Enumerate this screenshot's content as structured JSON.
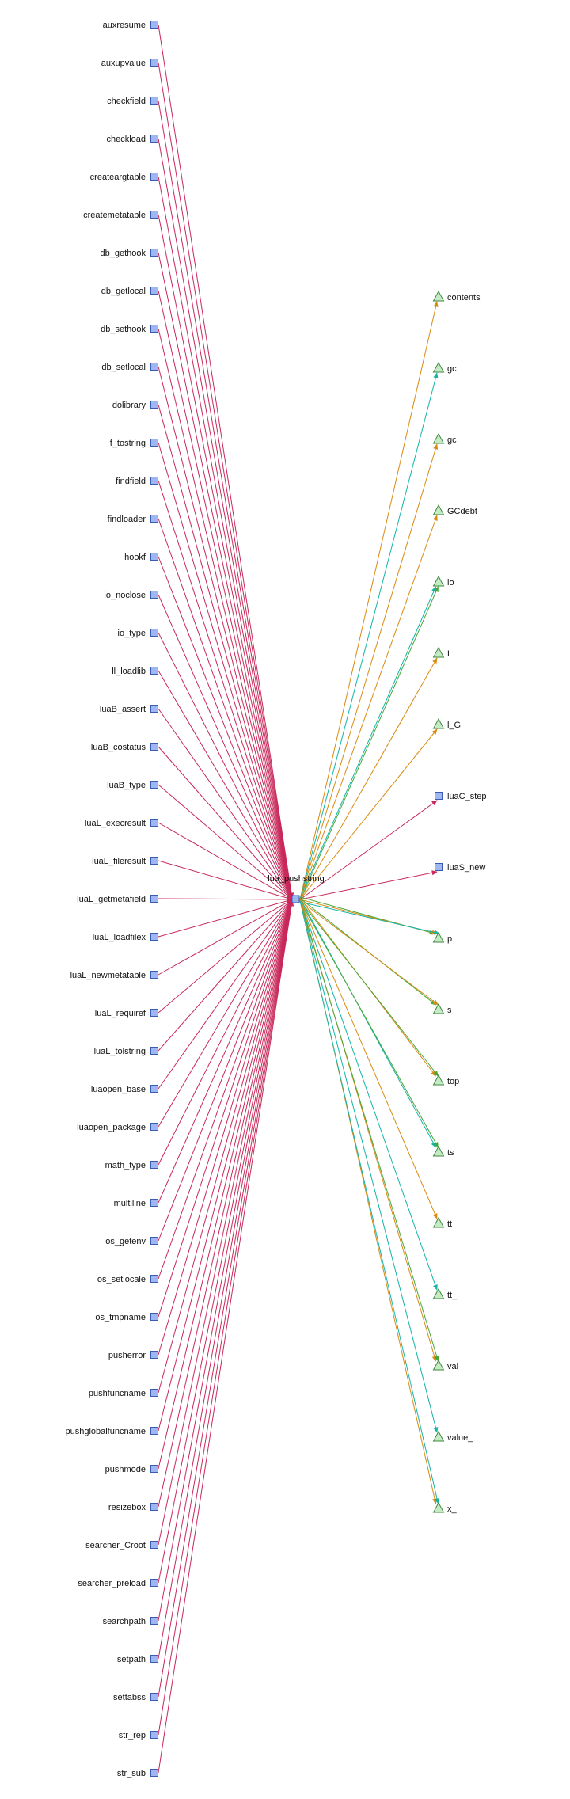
{
  "colors": {
    "caller_edge": "#c8285a",
    "func_edge": "#c8285a",
    "var_edge_orange": "#d98a10",
    "var_edge_teal": "#12b5a8",
    "var_edge_green": "#47a83a",
    "func_node_fill": "#9fb7f0",
    "func_node_stroke": "#3b5bb5",
    "var_node_fill": "#c6eac6",
    "var_node_stroke": "#3f8a3f"
  },
  "center": {
    "label": "lua_pushstring",
    "shape": "box"
  },
  "callers": [
    "auxresume",
    "auxupvalue",
    "checkfield",
    "checkload",
    "createargtable",
    "createmetatable",
    "db_gethook",
    "db_getlocal",
    "db_sethook",
    "db_setlocal",
    "dolibrary",
    "f_tostring",
    "findfield",
    "findloader",
    "hookf",
    "io_noclose",
    "io_type",
    "ll_loadlib",
    "luaB_assert",
    "luaB_costatus",
    "luaB_type",
    "luaL_execresult",
    "luaL_fileresult",
    "luaL_getmetafield",
    "luaL_loadfilex",
    "luaL_newmetatable",
    "luaL_requiref",
    "luaL_tolstring",
    "luaopen_base",
    "luaopen_package",
    "math_type",
    "multiline",
    "os_getenv",
    "os_setlocale",
    "os_tmpname",
    "pusherror",
    "pushfuncname",
    "pushglobalfuncname",
    "pushmode",
    "resizebox",
    "searcher_Croot",
    "searcher_preload",
    "searchpath",
    "setpath",
    "settabss",
    "str_rep",
    "str_sub"
  ],
  "callees": [
    {
      "label": "contents",
      "shape": "triangle",
      "edges": [
        "var_edge_orange"
      ]
    },
    {
      "label": "gc",
      "shape": "triangle",
      "edges": [
        "var_edge_teal"
      ]
    },
    {
      "label": "gc",
      "shape": "triangle",
      "edges": [
        "var_edge_orange"
      ]
    },
    {
      "label": "GCdebt",
      "shape": "triangle",
      "edges": [
        "var_edge_orange"
      ]
    },
    {
      "label": "io",
      "shape": "triangle",
      "edges": [
        "var_edge_teal",
        "var_edge_green"
      ]
    },
    {
      "label": "L",
      "shape": "triangle",
      "edges": [
        "var_edge_orange"
      ]
    },
    {
      "label": "l_G",
      "shape": "triangle",
      "edges": [
        "var_edge_orange"
      ]
    },
    {
      "label": "luaC_step",
      "shape": "box",
      "edges": [
        "func_edge"
      ]
    },
    {
      "label": "luaS_new",
      "shape": "box",
      "edges": [
        "func_edge"
      ]
    },
    {
      "label": "p",
      "shape": "triangle",
      "edges": [
        "var_edge_green",
        "var_edge_orange",
        "var_edge_teal"
      ]
    },
    {
      "label": "s",
      "shape": "triangle",
      "edges": [
        "var_edge_green",
        "var_edge_orange"
      ]
    },
    {
      "label": "top",
      "shape": "triangle",
      "edges": [
        "var_edge_orange",
        "var_edge_green"
      ]
    },
    {
      "label": "ts",
      "shape": "triangle",
      "edges": [
        "var_edge_teal",
        "var_edge_green"
      ]
    },
    {
      "label": "tt",
      "shape": "triangle",
      "edges": [
        "var_edge_orange"
      ]
    },
    {
      "label": "tt_",
      "shape": "triangle",
      "edges": [
        "var_edge_teal"
      ]
    },
    {
      "label": "val",
      "shape": "triangle",
      "edges": [
        "var_edge_orange",
        "var_edge_green"
      ]
    },
    {
      "label": "value_",
      "shape": "triangle",
      "edges": [
        "var_edge_teal"
      ]
    },
    {
      "label": "x_",
      "shape": "triangle",
      "edges": [
        "var_edge_orange",
        "var_edge_teal"
      ]
    }
  ]
}
